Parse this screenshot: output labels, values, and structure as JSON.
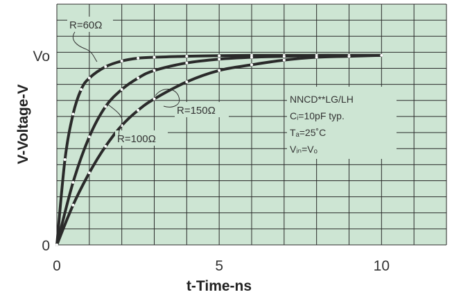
{
  "chart_data": {
    "type": "line",
    "title": "",
    "xlabel": "t-Time-ns",
    "ylabel": "V-Voltage-V",
    "xlim": [
      0,
      12
    ],
    "ylim": [
      0,
      1.27
    ],
    "x_ticks": [
      {
        "value": 0,
        "label": "0"
      },
      {
        "value": 5,
        "label": "5"
      },
      {
        "value": 10,
        "label": "10"
      }
    ],
    "y_ticks": [
      {
        "value": 0,
        "label": "0"
      },
      {
        "value": 1,
        "label": "Vo"
      }
    ],
    "grid": true,
    "legend": "none",
    "series": [
      {
        "name": "R=60Ω",
        "x": [
          0,
          0.25,
          0.5,
          0.75,
          1,
          1.5,
          2,
          2.5,
          3,
          4,
          5,
          6,
          7,
          8,
          9,
          10
        ],
        "y": [
          0,
          0.45,
          0.69,
          0.82,
          0.88,
          0.94,
          0.97,
          0.985,
          0.99,
          0.995,
          0.998,
          1,
          1,
          1,
          1,
          1
        ]
      },
      {
        "name": "R=100Ω",
        "x": [
          0,
          0.5,
          1,
          1.5,
          2,
          2.5,
          3,
          4,
          5,
          6,
          7,
          8,
          9,
          10
        ],
        "y": [
          0,
          0.33,
          0.57,
          0.73,
          0.82,
          0.88,
          0.92,
          0.96,
          0.98,
          0.99,
          0.995,
          1,
          1,
          1
        ]
      },
      {
        "name": "R=150Ω",
        "x": [
          0,
          0.5,
          1,
          1.5,
          2,
          2.5,
          3,
          4,
          5,
          6,
          7,
          8,
          9,
          10
        ],
        "y": [
          0,
          0.21,
          0.38,
          0.52,
          0.63,
          0.71,
          0.77,
          0.86,
          0.92,
          0.95,
          0.975,
          0.99,
          0.995,
          1
        ]
      }
    ],
    "annotations": {
      "conditions": [
        "NNCD**LG/LH",
        "Cᵢ=10pF typ.",
        "Tₐ=25˚C",
        "Vᵢₙ=Vₒ"
      ]
    }
  },
  "colors": {
    "plot_background": "#cde5d3",
    "grid": "#2a2a2a",
    "curve": "#2a2a2a",
    "marker": "#ffffff"
  }
}
